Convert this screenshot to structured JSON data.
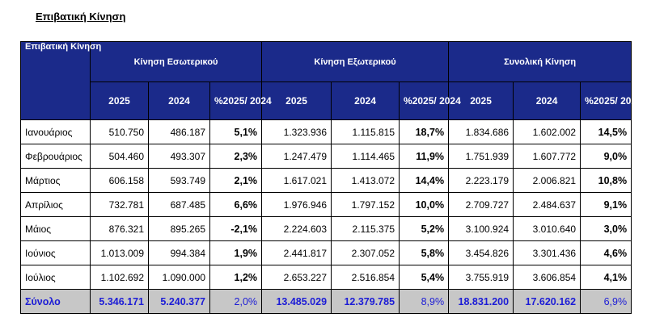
{
  "title": "Επιβατική Κίνηση",
  "header": {
    "row_label": "Επιβατική Κίνηση",
    "groups": [
      "Κίνηση Εσωτερικού",
      "Κίνηση Εξωτερικού",
      "Συνολική Κίνηση"
    ],
    "sub": [
      "2025",
      "2024",
      "%2025/ 2024"
    ]
  },
  "rows": [
    {
      "month": "Ιανουάριος",
      "d25": "510.750",
      "d24": "486.187",
      "dp": "5,1%",
      "i25": "1.323.936",
      "i24": "1.115.815",
      "ip": "18,7%",
      "t25": "1.834.686",
      "t24": "1.602.002",
      "tp": "14,5%"
    },
    {
      "month": "Φεβρουάριος",
      "d25": "504.460",
      "d24": "493.307",
      "dp": "2,3%",
      "i25": "1.247.479",
      "i24": "1.114.465",
      "ip": "11,9%",
      "t25": "1.751.939",
      "t24": "1.607.772",
      "tp": "9,0%"
    },
    {
      "month": "Μάρτιος",
      "d25": "606.158",
      "d24": "593.749",
      "dp": "2,1%",
      "i25": "1.617.021",
      "i24": "1.413.072",
      "ip": "14,4%",
      "t25": "2.223.179",
      "t24": "2.006.821",
      "tp": "10,8%"
    },
    {
      "month": "Απρίλιος",
      "d25": "732.781",
      "d24": "687.485",
      "dp": "6,6%",
      "i25": "1.976.946",
      "i24": "1.797.152",
      "ip": "10,0%",
      "t25": "2.709.727",
      "t24": "2.484.637",
      "tp": "9,1%"
    },
    {
      "month": "Μάιος",
      "d25": "876.321",
      "d24": "895.265",
      "dp": "-2,1%",
      "i25": "2.224.603",
      "i24": "2.115.375",
      "ip": "5,2%",
      "t25": "3.100.924",
      "t24": "3.010.640",
      "tp": "3,0%"
    },
    {
      "month": "Ιούνιος",
      "d25": "1.013.009",
      "d24": "994.384",
      "dp": "1,9%",
      "i25": "2.441.817",
      "i24": "2.307.052",
      "ip": "5,8%",
      "t25": "3.454.826",
      "t24": "3.301.436",
      "tp": "4,6%"
    },
    {
      "month": "Ιούλιος",
      "d25": "1.102.692",
      "d24": "1.090.000",
      "dp": "1,2%",
      "i25": "2.653.227",
      "i24": "2.516.854",
      "ip": "5,4%",
      "t25": "3.755.919",
      "t24": "3.606.854",
      "tp": "4,1%"
    }
  ],
  "total": {
    "month": "Σύνολο",
    "d25": "5.346.171",
    "d24": "5.240.377",
    "dp": "2,0%",
    "i25": "13.485.029",
    "i24": "12.379.785",
    "ip": "8,9%",
    "t25": "18.831.200",
    "t24": "17.620.162",
    "tp": "6,9%"
  },
  "colors": {
    "header_bg": "#1b2a8a",
    "header_text": "#ffffff",
    "total_bg": "#c7c7c7",
    "total_text": "#1c1cd6"
  }
}
